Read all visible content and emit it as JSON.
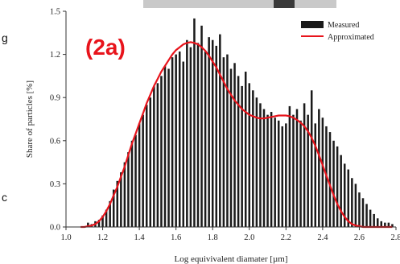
{
  "panel_label": "(2a)",
  "edge_letters": [
    "g",
    "c"
  ],
  "colors": {
    "bars": "#1a1a1a",
    "curve": "#e8141c",
    "panel_label": "#e8141c",
    "axis": "#333333",
    "top_band": "#c9c9c9"
  },
  "chart_data": {
    "type": "bar",
    "xlabel": "Log equivivalent diamater [µm]",
    "ylabel": "Share of particles [%]",
    "xlim": [
      1.0,
      2.8
    ],
    "ylim": [
      0.0,
      1.5
    ],
    "xticks": [
      1.0,
      1.2,
      1.4,
      1.6,
      1.8,
      2.0,
      2.2,
      2.4,
      2.6,
      2.8
    ],
    "xtick_labels": [
      "1.0",
      "1.2",
      "1.4",
      "1.6",
      "1.8",
      "2.0",
      "2.2",
      "2.4",
      "2.6",
      "2.8"
    ],
    "yticks": [
      0.0,
      0.3,
      0.6,
      0.9,
      1.2,
      1.5
    ],
    "ytick_labels": [
      "0.0",
      "0.3",
      "0.6",
      "0.9",
      "1.2",
      "1.5"
    ],
    "legend": {
      "position": "top-right",
      "entries": [
        "Measured",
        "Approximated"
      ]
    },
    "series": [
      {
        "name": "Measured",
        "type": "bar",
        "x": [
          1.12,
          1.14,
          1.16,
          1.18,
          1.2,
          1.22,
          1.24,
          1.26,
          1.28,
          1.3,
          1.32,
          1.34,
          1.36,
          1.38,
          1.4,
          1.42,
          1.44,
          1.46,
          1.48,
          1.5,
          1.52,
          1.54,
          1.56,
          1.58,
          1.6,
          1.62,
          1.64,
          1.66,
          1.68,
          1.7,
          1.72,
          1.74,
          1.76,
          1.78,
          1.8,
          1.82,
          1.84,
          1.86,
          1.88,
          1.9,
          1.92,
          1.94,
          1.96,
          1.98,
          2.0,
          2.02,
          2.04,
          2.06,
          2.08,
          2.1,
          2.12,
          2.14,
          2.16,
          2.18,
          2.2,
          2.22,
          2.24,
          2.26,
          2.28,
          2.3,
          2.32,
          2.34,
          2.36,
          2.38,
          2.4,
          2.42,
          2.44,
          2.46,
          2.48,
          2.5,
          2.52,
          2.54,
          2.56,
          2.58,
          2.6,
          2.62,
          2.64,
          2.66,
          2.68,
          2.7,
          2.72,
          2.74,
          2.76,
          2.78
        ],
        "values": [
          0.03,
          0.02,
          0.04,
          0.05,
          0.08,
          0.12,
          0.18,
          0.26,
          0.32,
          0.38,
          0.45,
          0.52,
          0.6,
          0.64,
          0.72,
          0.78,
          0.85,
          0.9,
          0.98,
          1.0,
          1.05,
          1.12,
          1.1,
          1.18,
          1.2,
          1.22,
          1.15,
          1.3,
          1.25,
          1.45,
          1.28,
          1.4,
          1.22,
          1.32,
          1.3,
          1.26,
          1.34,
          1.18,
          1.2,
          1.1,
          1.14,
          1.05,
          0.98,
          1.08,
          1.0,
          0.95,
          0.9,
          0.86,
          0.82,
          0.78,
          0.8,
          0.76,
          0.74,
          0.7,
          0.72,
          0.84,
          0.78,
          0.82,
          0.74,
          0.86,
          0.78,
          0.95,
          0.72,
          0.82,
          0.76,
          0.7,
          0.66,
          0.6,
          0.56,
          0.5,
          0.44,
          0.4,
          0.34,
          0.3,
          0.24,
          0.2,
          0.16,
          0.12,
          0.09,
          0.06,
          0.04,
          0.03,
          0.03,
          0.02
        ]
      },
      {
        "name": "Approximated",
        "type": "line",
        "x": [
          1.08,
          1.1,
          1.12,
          1.14,
          1.16,
          1.18,
          1.2,
          1.22,
          1.24,
          1.26,
          1.28,
          1.3,
          1.32,
          1.34,
          1.36,
          1.38,
          1.4,
          1.42,
          1.44,
          1.46,
          1.48,
          1.5,
          1.52,
          1.54,
          1.56,
          1.58,
          1.6,
          1.62,
          1.64,
          1.66,
          1.68,
          1.7,
          1.72,
          1.74,
          1.76,
          1.78,
          1.8,
          1.82,
          1.84,
          1.86,
          1.88,
          1.9,
          1.92,
          1.94,
          1.96,
          1.98,
          2.0,
          2.02,
          2.04,
          2.06,
          2.08,
          2.1,
          2.12,
          2.14,
          2.16,
          2.18,
          2.2,
          2.22,
          2.24,
          2.26,
          2.28,
          2.3,
          2.32,
          2.34,
          2.36,
          2.38,
          2.4,
          2.42,
          2.44,
          2.46,
          2.48,
          2.5,
          2.52,
          2.54,
          2.56,
          2.58,
          2.6,
          2.62,
          2.64,
          2.66,
          2.68,
          2.7,
          2.72,
          2.74,
          2.76,
          2.78
        ],
        "values": [
          0.0,
          0.0,
          0.005,
          0.01,
          0.02,
          0.04,
          0.07,
          0.11,
          0.16,
          0.22,
          0.28,
          0.35,
          0.42,
          0.5,
          0.58,
          0.65,
          0.72,
          0.79,
          0.86,
          0.92,
          0.98,
          1.03,
          1.08,
          1.12,
          1.16,
          1.2,
          1.23,
          1.25,
          1.27,
          1.28,
          1.285,
          1.28,
          1.27,
          1.25,
          1.225,
          1.19,
          1.15,
          1.11,
          1.06,
          1.01,
          0.96,
          0.92,
          0.88,
          0.85,
          0.82,
          0.8,
          0.78,
          0.77,
          0.76,
          0.755,
          0.755,
          0.76,
          0.765,
          0.77,
          0.775,
          0.775,
          0.775,
          0.77,
          0.76,
          0.745,
          0.725,
          0.7,
          0.665,
          0.62,
          0.565,
          0.5,
          0.43,
          0.36,
          0.29,
          0.22,
          0.16,
          0.11,
          0.07,
          0.04,
          0.02,
          0.01,
          0.005,
          0.0,
          0.0,
          0.0,
          0.0,
          0.0,
          0.0,
          0.0,
          0.0,
          0.0
        ]
      }
    ]
  }
}
